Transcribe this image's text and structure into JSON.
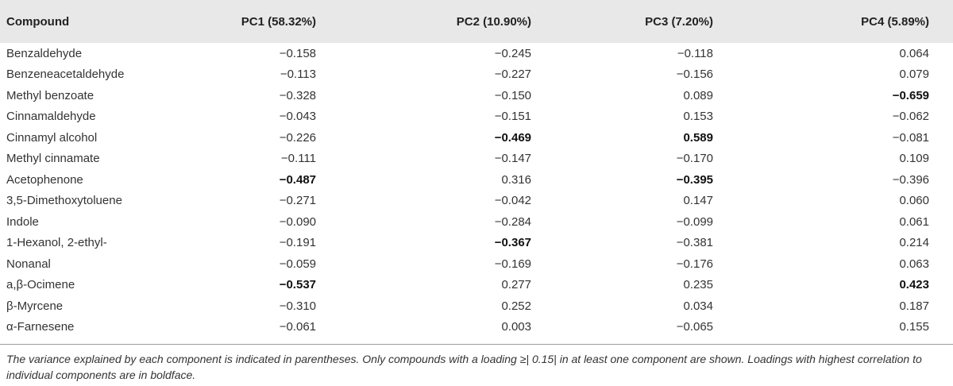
{
  "table": {
    "headers": [
      "Compound",
      "PC1 (58.32%)",
      "PC2 (10.90%)",
      "PC3 (7.20%)",
      "PC4 (5.89%)"
    ],
    "rows": [
      {
        "compound": "Benzaldehyde",
        "values": [
          "−0.158",
          "−0.245",
          "−0.118",
          "0.064"
        ],
        "bold": [
          false,
          false,
          false,
          false
        ]
      },
      {
        "compound": "Benzeneacetaldehyde",
        "values": [
          "−0.113",
          "−0.227",
          "−0.156",
          "0.079"
        ],
        "bold": [
          false,
          false,
          false,
          false
        ]
      },
      {
        "compound": "Methyl benzoate",
        "values": [
          "−0.328",
          "−0.150",
          "0.089",
          "−0.659"
        ],
        "bold": [
          false,
          false,
          false,
          true
        ]
      },
      {
        "compound": "Cinnamaldehyde",
        "values": [
          "−0.043",
          "−0.151",
          "0.153",
          "−0.062"
        ],
        "bold": [
          false,
          false,
          false,
          false
        ]
      },
      {
        "compound": "Cinnamyl alcohol",
        "values": [
          "−0.226",
          "−0.469",
          "0.589",
          "−0.081"
        ],
        "bold": [
          false,
          true,
          true,
          false
        ]
      },
      {
        "compound": "Methyl cinnamate",
        "values": [
          "−0.111",
          "−0.147",
          "−0.170",
          "0.109"
        ],
        "bold": [
          false,
          false,
          false,
          false
        ]
      },
      {
        "compound": "Acetophenone",
        "values": [
          "−0.487",
          "0.316",
          "−0.395",
          "−0.396"
        ],
        "bold": [
          true,
          false,
          true,
          false
        ]
      },
      {
        "compound": "3,5-Dimethoxytoluene",
        "values": [
          "−0.271",
          "−0.042",
          "0.147",
          "0.060"
        ],
        "bold": [
          false,
          false,
          false,
          false
        ]
      },
      {
        "compound": "Indole",
        "values": [
          "−0.090",
          "−0.284",
          "−0.099",
          "0.061"
        ],
        "bold": [
          false,
          false,
          false,
          false
        ]
      },
      {
        "compound": "1-Hexanol, 2-ethyl-",
        "values": [
          "−0.191",
          "−0.367",
          "−0.381",
          "0.214"
        ],
        "bold": [
          false,
          true,
          false,
          false
        ]
      },
      {
        "compound": "Nonanal",
        "values": [
          "−0.059",
          "−0.169",
          "−0.176",
          "0.063"
        ],
        "bold": [
          false,
          false,
          false,
          false
        ]
      },
      {
        "compound": "a,β-Ocimene",
        "values": [
          "−0.537",
          "0.277",
          "0.235",
          "0.423"
        ],
        "bold": [
          true,
          false,
          false,
          true
        ]
      },
      {
        "compound": "β-Myrcene",
        "values": [
          "−0.310",
          "0.252",
          "0.034",
          "0.187"
        ],
        "bold": [
          false,
          false,
          false,
          false
        ]
      },
      {
        "compound": "α-Farnesene",
        "values": [
          "−0.061",
          "0.003",
          "−0.065",
          "0.155"
        ],
        "bold": [
          false,
          false,
          false,
          false
        ]
      }
    ]
  },
  "footnote": "The variance explained by each component is indicated in parentheses. Only compounds with a loading ≥| 0.15| in at least one component are shown. Loadings with highest correlation to individual components are in boldface.",
  "colors": {
    "header_background": "#e8e8e8",
    "text": "#222222"
  }
}
